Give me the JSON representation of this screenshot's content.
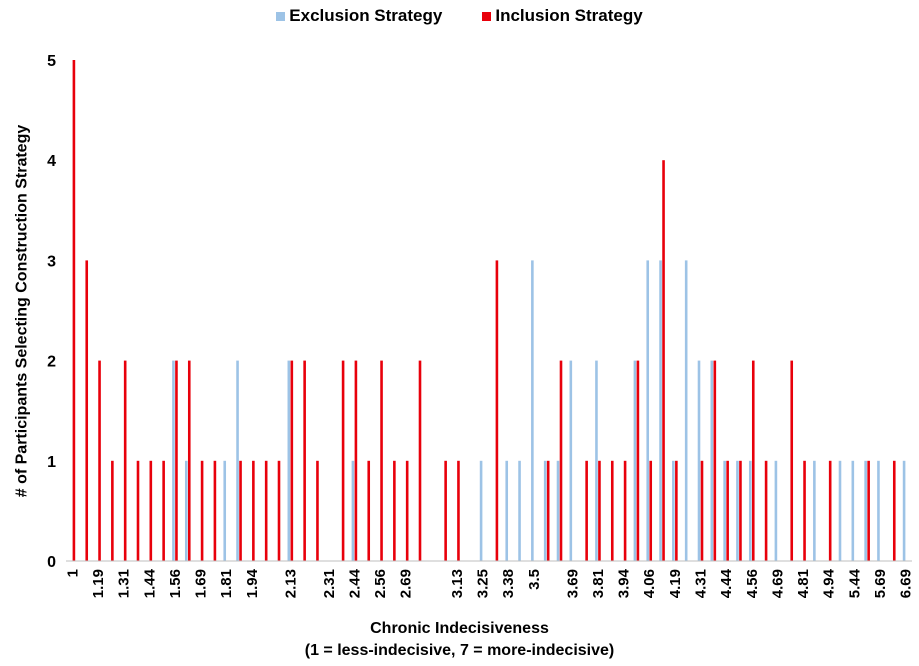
{
  "chart_data": {
    "type": "bar",
    "title": "",
    "xlabel_line1": "Chronic Indecisiveness",
    "xlabel_line2": "(1 = less-indecisive, 7 = more-indecisive)",
    "ylabel": "# of Participants Selecting Construction Strategy",
    "ylim": [
      0,
      5
    ],
    "yticks": [
      0,
      1,
      2,
      3,
      4,
      5
    ],
    "legend_position": "top-center",
    "grid": false,
    "categories": [
      "1",
      "1.13",
      "1.19",
      "1.25",
      "1.31",
      "1.38",
      "1.44",
      "1.5",
      "1.56",
      "1.63",
      "1.69",
      "1.75",
      "1.81",
      "1.88",
      "1.94",
      "2",
      "2.06",
      "2.13",
      "2.19",
      "2.25",
      "2.31",
      "2.38",
      "2.44",
      "2.5",
      "2.56",
      "2.63",
      "2.69",
      "2.75",
      "2.81",
      "3.06",
      "3.13",
      "3.19",
      "3.25",
      "3.31",
      "3.38",
      "3.44",
      "3.5",
      "3.56",
      "3.63",
      "3.69",
      "3.75",
      "3.81",
      "3.88",
      "3.94",
      "4",
      "4.06",
      "4.13",
      "4.19",
      "4.25",
      "4.31",
      "4.38",
      "4.44",
      "4.5",
      "4.56",
      "4.63",
      "4.69",
      "4.75",
      "4.81",
      "4.88",
      "4.94",
      "5",
      "5.44",
      "5.56",
      "5.69",
      "5.81",
      "6.69"
    ],
    "xtick_labels": [
      "1",
      "1.19",
      "1.31",
      "1.44",
      "1.56",
      "1.69",
      "1.81",
      "1.94",
      "2.13",
      "2.31",
      "2.44",
      "2.56",
      "2.69",
      "3.13",
      "3.25",
      "3.38",
      "3.5",
      "3.69",
      "3.81",
      "3.94",
      "4.06",
      "4.19",
      "4.31",
      "4.44",
      "4.56",
      "4.69",
      "4.81",
      "4.94",
      "5.44",
      "5.69",
      "6.69"
    ],
    "series": [
      {
        "name": "Exclusion Strategy",
        "color": "#9DC3E6",
        "values": [
          0,
          0,
          0,
          0,
          0,
          0,
          0,
          0,
          2,
          1,
          0,
          0,
          1,
          2,
          0,
          0,
          0,
          2,
          0,
          0,
          0,
          0,
          1,
          0,
          0,
          0,
          0,
          0,
          0,
          0,
          0,
          0,
          1,
          0,
          1,
          1,
          3,
          1,
          1,
          2,
          0,
          2,
          0,
          0,
          2,
          3,
          3,
          1,
          3,
          2,
          2,
          1,
          1,
          1,
          0,
          1,
          0,
          0,
          1,
          0,
          1,
          1,
          1,
          1,
          0,
          1
        ]
      },
      {
        "name": "Inclusion Strategy",
        "color": "#E8000B",
        "values": [
          5,
          3,
          2,
          1,
          2,
          1,
          1,
          1,
          2,
          2,
          1,
          1,
          0,
          1,
          1,
          1,
          1,
          2,
          2,
          1,
          0,
          2,
          2,
          1,
          2,
          1,
          1,
          2,
          0,
          1,
          1,
          0,
          0,
          3,
          0,
          0,
          0,
          1,
          2,
          0,
          1,
          1,
          1,
          1,
          2,
          1,
          4,
          1,
          0,
          1,
          2,
          1,
          1,
          2,
          1,
          0,
          2,
          1,
          0,
          1,
          0,
          0,
          1,
          0,
          1,
          0
        ]
      }
    ]
  }
}
